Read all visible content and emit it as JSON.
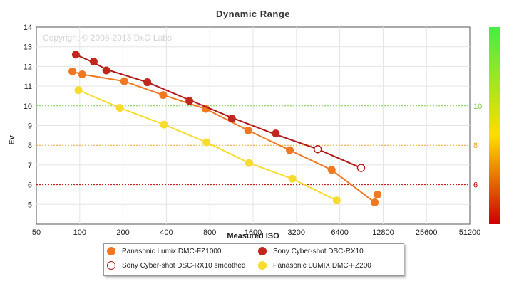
{
  "chart_data": {
    "type": "line",
    "title": "Dynamic Range",
    "watermark": "Copyright © 2008-2013 DxO Labs",
    "xlabel": "Measured ISO",
    "ylabel": "Ev",
    "x_scale": "log2",
    "x_ticks": [
      "50",
      "100",
      "200",
      "400",
      "800",
      "1600",
      "3200",
      "6400",
      "12800",
      "25600",
      "51200"
    ],
    "y_ticks": [
      "5",
      "6",
      "7",
      "8",
      "9",
      "10",
      "11",
      "12",
      "13",
      "14"
    ],
    "xlim": [
      50,
      51200
    ],
    "ylim": [
      4,
      14
    ],
    "grid": true,
    "legend_position": "bottom",
    "reference_lines": [
      {
        "value": 10,
        "label": "10",
        "color": "#7cc94a"
      },
      {
        "value": 8,
        "label": "8",
        "color": "#e8a020"
      },
      {
        "value": 6,
        "label": "6",
        "color": "#c00000"
      }
    ],
    "color_scale": {
      "top": "#44ee44",
      "middle": "#ffdd00",
      "bottom": "#cc0000"
    },
    "series": [
      {
        "name": "Panasonic Lumix DMC-FZ1000",
        "color": "#f07820",
        "marker": "filled",
        "x": [
          89,
          104,
          204,
          380,
          750,
          1480,
          2880,
          5620,
          11200,
          11700
        ],
        "y": [
          11.75,
          11.6,
          11.25,
          10.55,
          9.85,
          8.75,
          7.75,
          6.75,
          5.1,
          5.5
        ]
      },
      {
        "name": "Sony Cyber-shot DSC-RX10",
        "color": "#c0281e",
        "marker": "filled",
        "x": [
          94,
          125,
          153,
          295,
          578,
          1140,
          2300
        ],
        "y": [
          12.6,
          12.25,
          11.8,
          11.2,
          10.25,
          9.35,
          8.6
        ]
      },
      {
        "name": "Sony Cyber-shot DSC-RX10 smoothed",
        "color": "#b01818",
        "marker": "open",
        "x": [
          94,
          125,
          153,
          295,
          578,
          1140,
          2300,
          4500,
          9000
        ],
        "y": [
          12.6,
          12.2,
          11.85,
          11.2,
          10.3,
          9.4,
          8.55,
          7.8,
          6.85
        ]
      },
      {
        "name": "Panasonic LUMIX DMC-FZ200",
        "color": "#f7dc2e",
        "marker": "filled",
        "x": [
          98,
          190,
          385,
          760,
          1500,
          3000,
          6100
        ],
        "y": [
          10.8,
          9.9,
          9.05,
          8.15,
          7.1,
          6.3,
          5.2
        ]
      }
    ]
  }
}
